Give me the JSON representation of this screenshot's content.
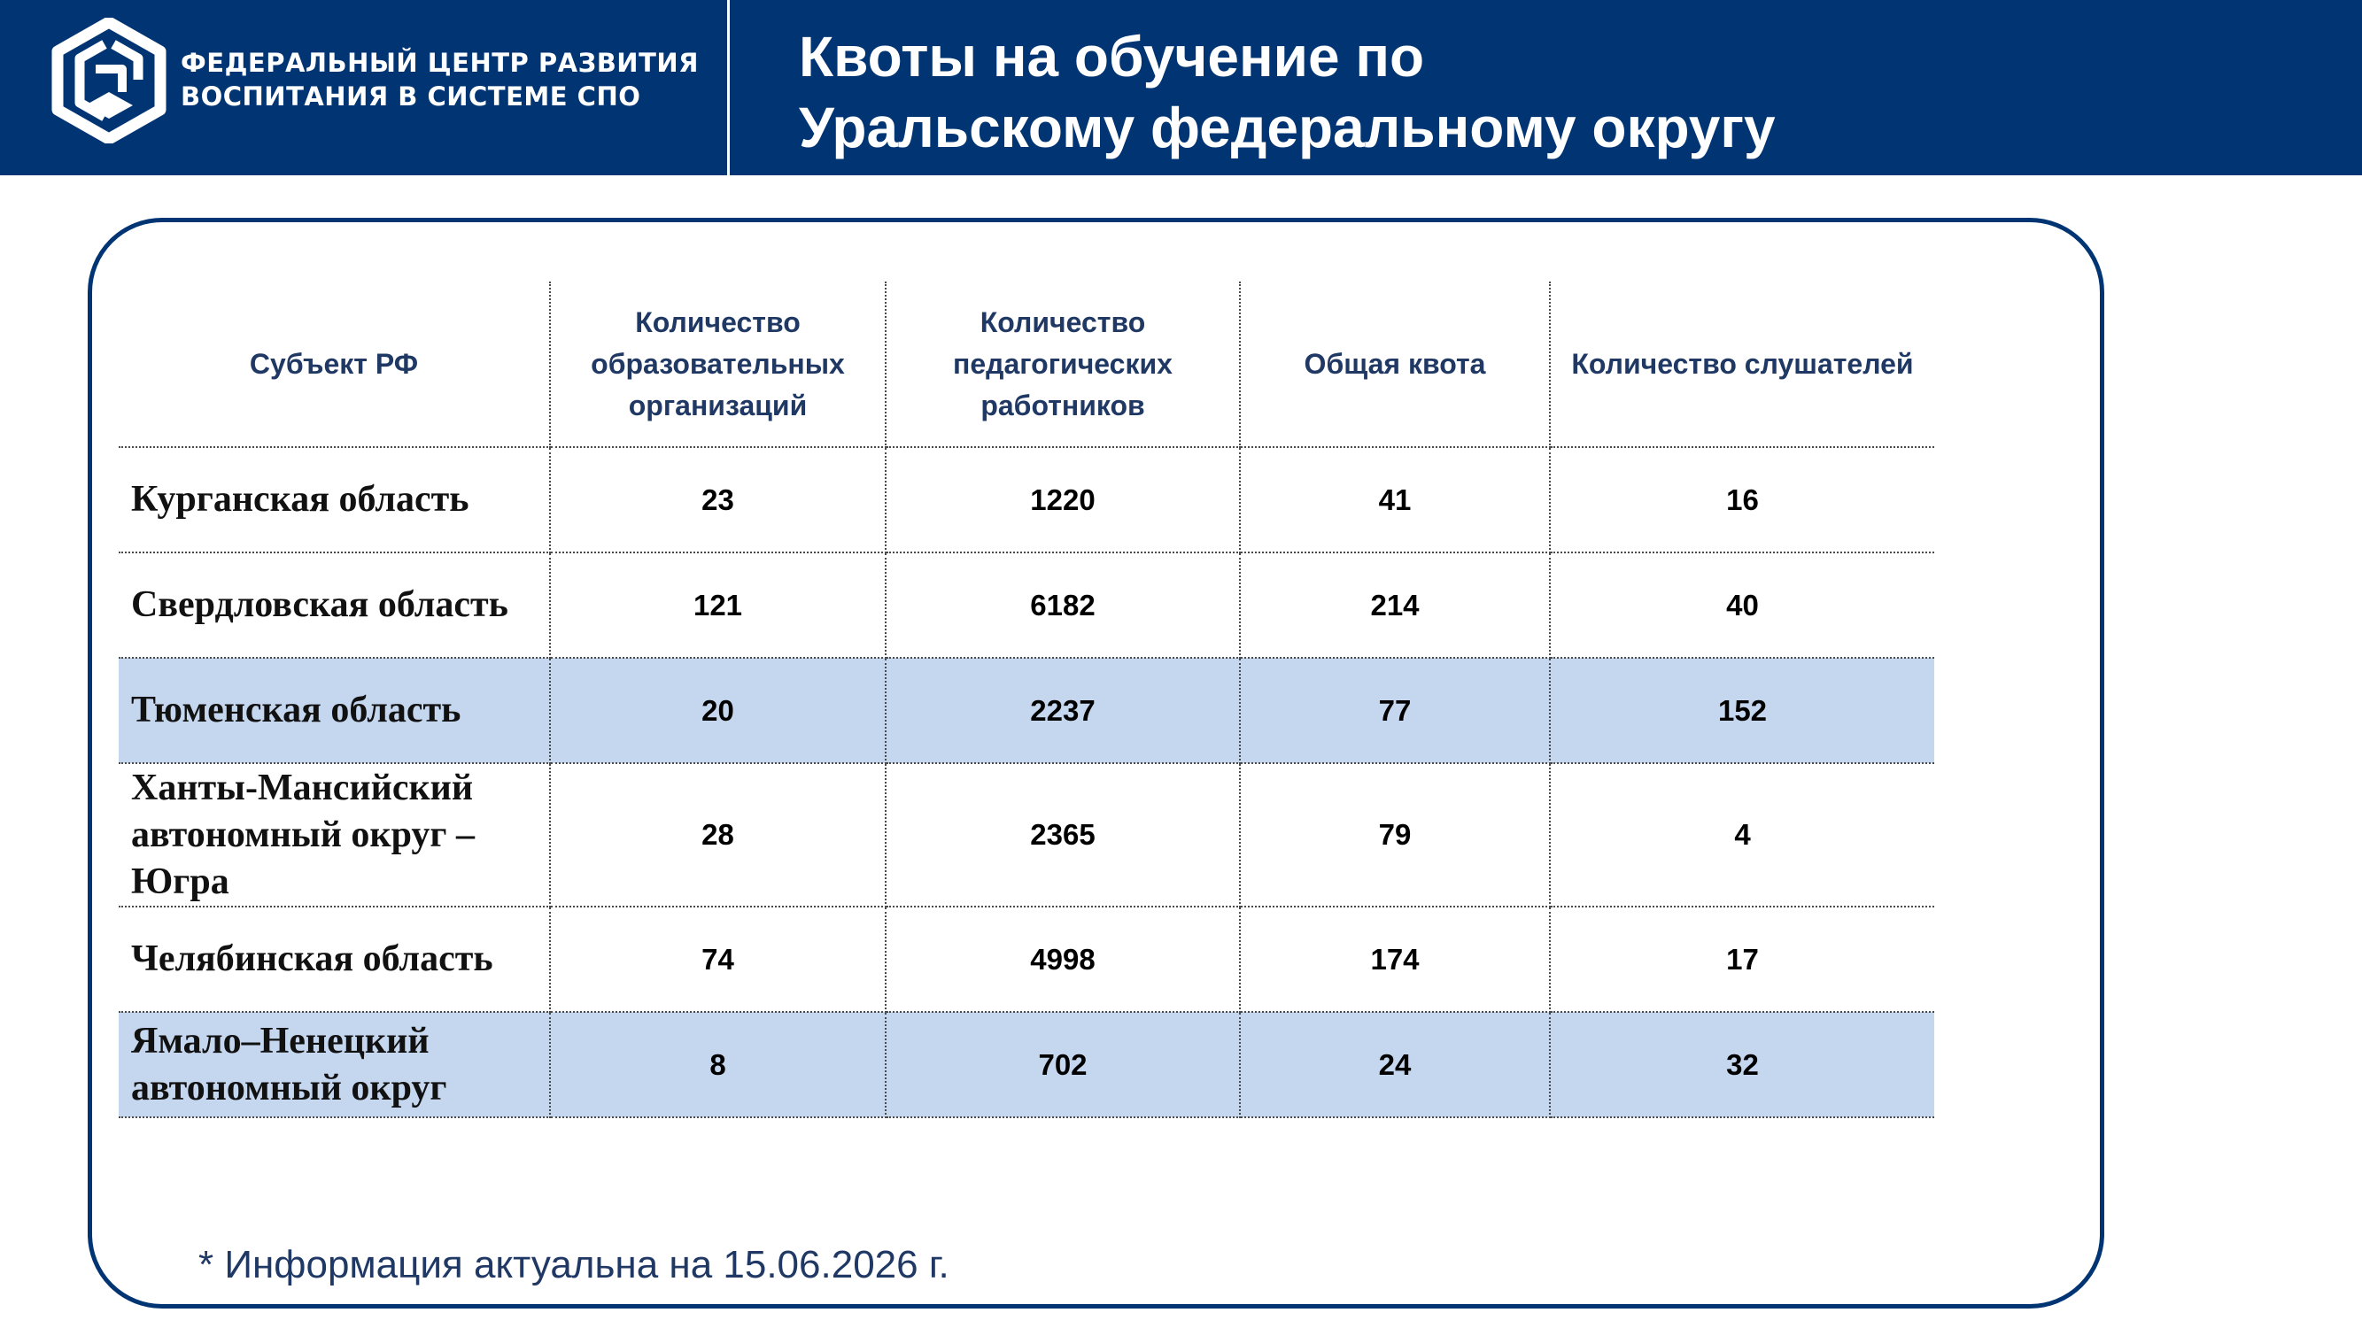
{
  "header": {
    "org_line1": "ФЕДЕРАЛЬНЫЙ ЦЕНТР РАЗВИТИЯ",
    "org_line2": "ВОСПИТАНИЯ В СИСТЕМЕ СПО",
    "title_line1": "Квоты на обучение по",
    "title_line2": "Уральскому федеральному округу",
    "logo_icon": "hexagon-spo-logo-icon",
    "background_color": "#003473"
  },
  "table": {
    "columns": [
      "Субъект РФ",
      "Количество образовательных организаций",
      "Количество педагогических работников",
      "Общая квота",
      "Количество слушателей"
    ],
    "rows": [
      {
        "region": "Курганская область",
        "orgs": "23",
        "teachers": "1220",
        "quota": "41",
        "listeners": "16",
        "highlighted": false
      },
      {
        "region": "Свердловская область",
        "orgs": "121",
        "teachers": "6182",
        "quota": "214",
        "listeners": "40",
        "highlighted": false
      },
      {
        "region": "Тюменская область",
        "orgs": "20",
        "teachers": "2237",
        "quota": "77",
        "listeners": "152",
        "highlighted": true
      },
      {
        "region": "Ханты-Мансийский автономный округ – Югра",
        "orgs": "28",
        "teachers": "2365",
        "quota": "79",
        "listeners": "4",
        "highlighted": false
      },
      {
        "region": "Челябинская область",
        "orgs": "74",
        "teachers": "4998",
        "quota": "174",
        "listeners": "17",
        "highlighted": false
      },
      {
        "region": "Ямало–Ненецкий автономный округ",
        "orgs": "8",
        "teachers": "702",
        "quota": "24",
        "listeners": "32",
        "highlighted": true
      }
    ],
    "highlight_color": "#c5d6ef",
    "header_text_color": "#1f3864"
  },
  "footnote": "* Информация актуальна на 15.06.2026 г."
}
